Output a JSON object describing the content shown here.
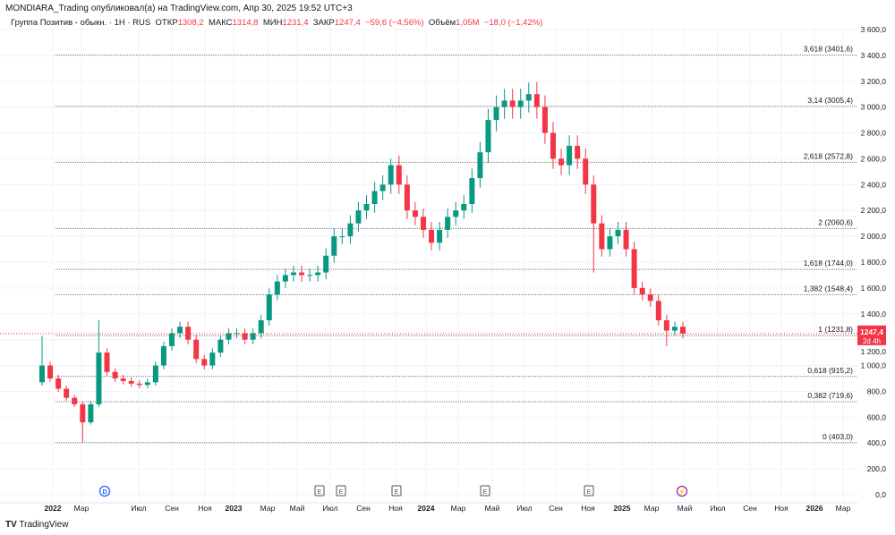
{
  "header": {
    "published": "MONDIARA_Trading опубликовал(а) на TradingView.com, Апр 30, 2025 19:52 UTC+3"
  },
  "legend": {
    "symbol": "Группа Позитив - обыкн. · 1H · RUS",
    "open_label": "ОТКР",
    "open": "1308,2",
    "high_label": "МАКС",
    "high": "1314,8",
    "low_label": "МИН",
    "low": "1231,4",
    "close_label": "ЗАКР",
    "close": "1247,4",
    "change": "−59,6 (−4,56%)",
    "vol_label": "Объём",
    "vol": "1,05M",
    "vol_change": "−18,0 (−1,42%)"
  },
  "brand": "TradingView",
  "colors": {
    "up": "#089981",
    "down": "#f23645",
    "event_d": "#2962ff",
    "event_e": "#50535e",
    "event_s": "#9c27b0"
  },
  "chart_data": {
    "type": "candlestick",
    "ylim": [
      0,
      3600
    ],
    "yticks": [
      "0,0",
      "200,0",
      "400,0",
      "600,0",
      "800,0",
      "1 000,0",
      "1 200,0",
      "1 400,0",
      "1 600,0",
      "1 800,0",
      "2 000,0",
      "2 200,0",
      "2 400,0",
      "2 600,0",
      "2 800,0",
      "3 000,0",
      "3 200,0",
      "3 400,0",
      "3 600,0"
    ],
    "xticks": [
      "2022",
      "Мар",
      "Июл",
      "Сен",
      "Ноя",
      "2023",
      "Мар",
      "Май",
      "Июл",
      "Сен",
      "Ноя",
      "2024",
      "Мар",
      "Май",
      "Июл",
      "Сен",
      "Ноя",
      "2025",
      "Мар",
      "Май",
      "Июл",
      "Сен",
      "Ноя",
      "2026",
      "Мар"
    ],
    "first_open": 870,
    "closes": [
      1000,
      900,
      820,
      750,
      700,
      560,
      700,
      1100,
      950,
      900,
      880,
      860,
      850,
      870,
      1000,
      1150,
      1250,
      1300,
      1200,
      1050,
      1000,
      1100,
      1200,
      1250,
      1250,
      1200,
      1250,
      1350,
      1550,
      1650,
      1700,
      1720,
      1700,
      1700,
      1720,
      1850,
      2000,
      2000,
      2100,
      2200,
      2250,
      2350,
      2400,
      2550,
      2400,
      2200,
      2150,
      2050,
      1950,
      2050,
      2150,
      2200,
      2250,
      2450,
      2650,
      2900,
      3000,
      3050,
      3000,
      3050,
      3100,
      3000,
      2800,
      2600,
      2550,
      2700,
      2600,
      2400,
      2100,
      1900,
      2000,
      2050,
      1900,
      1600,
      1550,
      1500,
      1350,
      1270,
      1300,
      1247.4
    ],
    "extreme_highs": {
      "0": 1230,
      "7": 1350,
      "60": 3190,
      "43": 2600
    },
    "extreme_lows": {
      "5": 403,
      "68": 1720,
      "77": 1150
    },
    "fib_levels": [
      {
        "label": "3,618 (3401,6)",
        "value": 3401.6
      },
      {
        "label": "3,14 (3005,4)",
        "value": 3005.4
      },
      {
        "label": "2,618 (2572,8)",
        "value": 2572.8
      },
      {
        "label": "2 (2060,6)",
        "value": 2060.6
      },
      {
        "label": "1,618 (1744,0)",
        "value": 1744.0
      },
      {
        "label": "1,382 (1548,4)",
        "value": 1548.4
      },
      {
        "label": "1 (1231,8)",
        "value": 1231.8
      },
      {
        "label": "0,618 (915,2)",
        "value": 915.2
      },
      {
        "label": "0,382 (719,6)",
        "value": 719.6
      },
      {
        "label": "0 (403,0)",
        "value": 403.0
      }
    ],
    "last_price": {
      "value": 1247.4,
      "label": "1247,4",
      "countdown": "2d 4h"
    },
    "events": [
      {
        "type": "D",
        "label": "D"
      },
      {
        "type": "E",
        "label": "E"
      },
      {
        "type": "E",
        "label": "E"
      },
      {
        "type": "E",
        "label": "E"
      },
      {
        "type": "E",
        "label": "E"
      },
      {
        "type": "E",
        "label": "E"
      },
      {
        "type": "S",
        "label": "⚡"
      }
    ]
  }
}
